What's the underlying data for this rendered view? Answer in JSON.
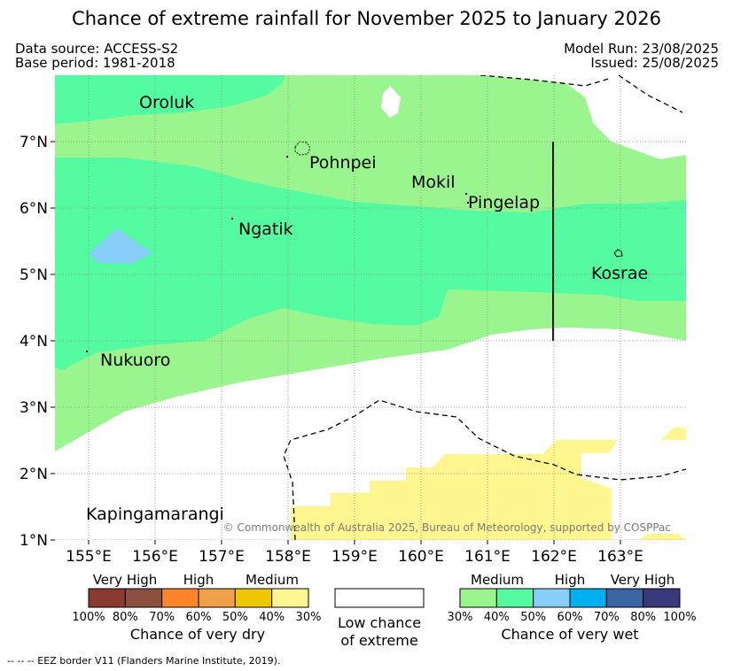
{
  "title": "Chance of extreme rainfall for November 2025 to January 2026",
  "meta": {
    "data_source": "Data source: ACCESS-S2",
    "base_period": "Base period: 1981-2018",
    "model_run": "Model Run: 23/08/2025",
    "issued": "Issued: 25/08/2025"
  },
  "map": {
    "lon_range": [
      154.5,
      164.0
    ],
    "lat_range": [
      0.9,
      8.0
    ],
    "lon_ticks": [
      "155°E",
      "156°E",
      "157°E",
      "158°E",
      "159°E",
      "160°E",
      "161°E",
      "162°E",
      "163°E"
    ],
    "lat_ticks": [
      "1°N",
      "2°N",
      "3°N",
      "4°N",
      "5°N",
      "6°N",
      "7°N"
    ],
    "places": {
      "oroluk": "Oroluk",
      "pohnpei": "Pohnpei",
      "mokil": "Mokil",
      "pingelap": "Pingelap",
      "ngatik": "Ngatik",
      "kosrae": "Kosrae",
      "nukuoro": "Nukuoro",
      "kapingamarangi": "Kapingamarangi"
    },
    "copyright": "© Commonwealth of Australia 2025, Bureau of Meteorology, supported by COSPPac"
  },
  "legend": {
    "dry": {
      "headers": [
        "Very High",
        "High",
        "Medium"
      ],
      "colors": [
        "#8b3a32",
        "#8b4f3f",
        "#fb8528",
        "#f0a04b",
        "#edc800",
        "#fff68f"
      ],
      "pcts": [
        "100%",
        "80%",
        "70%",
        "60%",
        "50%",
        "40%",
        "30%"
      ],
      "caption": "Chance of very dry"
    },
    "neutral": {
      "line1": "Low chance",
      "line2": "of extreme"
    },
    "wet": {
      "headers": [
        "Medium",
        "High",
        "Very High"
      ],
      "colors": [
        "#9af58f",
        "#54fba1",
        "#87cefa",
        "#00b0ee",
        "#3a64a4",
        "#3a3a7a"
      ],
      "pcts": [
        "30%",
        "40%",
        "50%",
        "60%",
        "70%",
        "80%",
        "100%"
      ],
      "caption": "Chance of very wet"
    }
  },
  "eez_note": "--  --  -- EEZ border V11 (Flanders Marine Institute, 2019)."
}
